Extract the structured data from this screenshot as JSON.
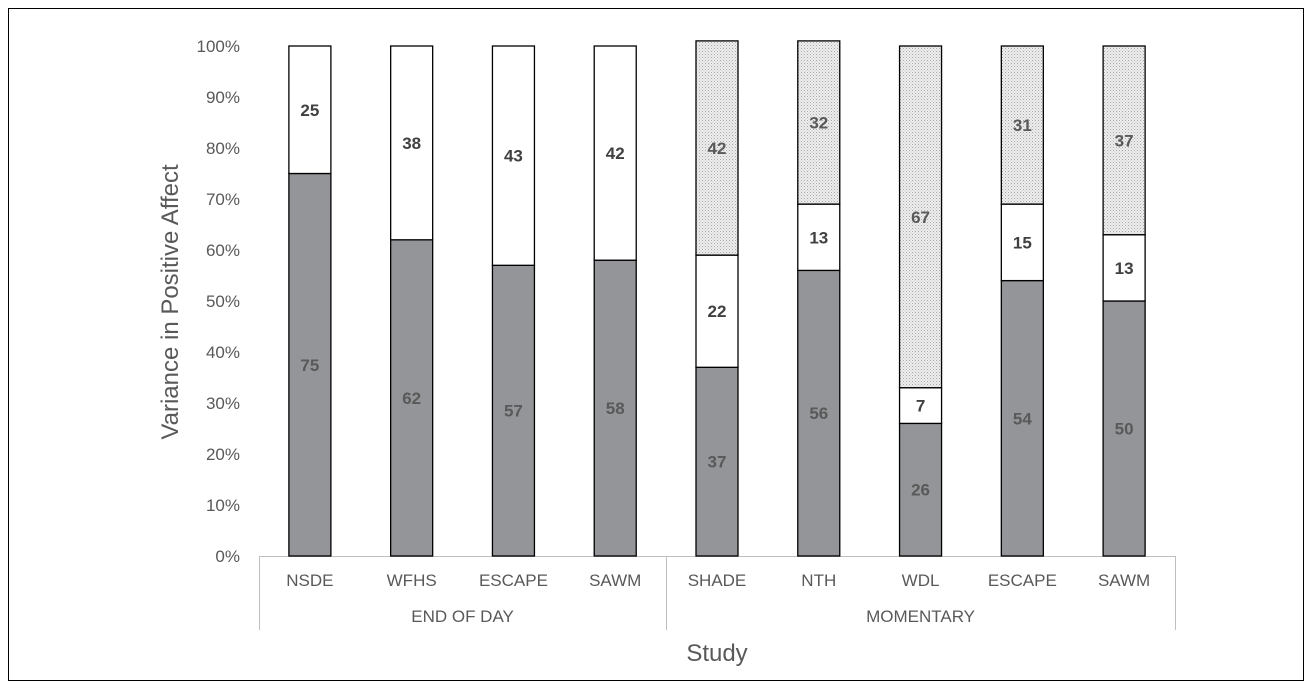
{
  "chart_data": {
    "type": "bar",
    "stacked": true,
    "ylabel": "Variance in Positive Affect",
    "xlabel": "Study",
    "ylim": [
      0,
      100
    ],
    "yticks": [
      "0%",
      "10%",
      "20%",
      "30%",
      "40%",
      "50%",
      "60%",
      "70%",
      "80%",
      "90%",
      "100%"
    ],
    "groups": [
      {
        "label": "END OF DAY",
        "categories": [
          "NSDE",
          "WFHS",
          "ESCAPE",
          "SAWM"
        ]
      },
      {
        "label": "MOMENTARY",
        "categories": [
          "SHADE",
          "NTH",
          "WDL",
          "ESCAPE",
          "SAWM"
        ]
      }
    ],
    "categories": [
      "NSDE",
      "WFHS",
      "ESCAPE",
      "SAWM",
      "SHADE",
      "NTH",
      "WDL",
      "ESCAPE",
      "SAWM"
    ],
    "series": [
      {
        "values": [
          75,
          62,
          57,
          58,
          37,
          56,
          26,
          54,
          50
        ],
        "color": "#939598",
        "label_color": "#595959"
      },
      {
        "values": [
          25,
          38,
          43,
          42,
          22,
          13,
          7,
          15,
          13
        ],
        "color": "#ffffff",
        "label_color": "#404040"
      },
      {
        "values": [
          null,
          null,
          null,
          null,
          42,
          32,
          67,
          31,
          37
        ],
        "color": "#e6e6e6",
        "pattern": "dotted",
        "label_color": "#595959"
      }
    ],
    "grid": false,
    "legend": "none"
  }
}
